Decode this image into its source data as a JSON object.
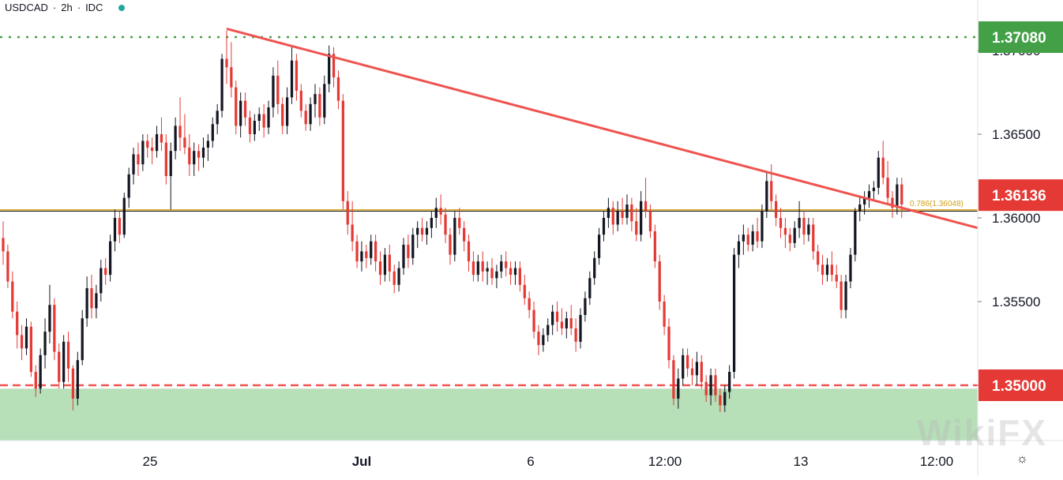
{
  "header": {
    "symbol": "USDCAD",
    "separator": "·",
    "interval": "2h",
    "source": "IDC",
    "status_color": "#26a69a"
  },
  "watermark_text": "WikiFX",
  "settings_icon": "gear-icon",
  "colors": {
    "up": "#131722",
    "down": "#e53935",
    "trendline": "#ef5350",
    "resistance": "#43a047",
    "support": "#ef5350",
    "support_zone": "#b7e0b9",
    "fib": "#d4a017",
    "price_line": "#131722"
  },
  "chart_data": {
    "type": "candlestick",
    "symbol": "USDCAD",
    "interval": "2h",
    "source": "IDC",
    "y_axis": {
      "ticks": [
        "1.35000",
        "1.35500",
        "1.36000",
        "1.36500",
        "1.37000"
      ],
      "range": [
        1.3461,
        1.3775
      ]
    },
    "x_axis": {
      "ticks": [
        "25",
        "Jul",
        "6",
        "12:00",
        "13",
        "12:00"
      ]
    },
    "price_labels": [
      {
        "value": "1.37080",
        "color": "#43a047"
      },
      {
        "value": "1.36136",
        "color": "#e53935"
      },
      {
        "value": "1.35000",
        "color": "#e53935"
      }
    ],
    "horizontal_lines": [
      {
        "value": 1.3708,
        "style": "dotted",
        "color": "#43a047"
      },
      {
        "value": 1.35,
        "style": "dashed",
        "color": "#ef5350"
      },
      {
        "value": 1.36048,
        "style": "solid",
        "color": "#d4a017",
        "label": "0.786(1.36048)"
      }
    ],
    "support_zone": [
      1.3461,
      1.3498
    ],
    "trendline": {
      "from": {
        "bar": 48,
        "price": 1.3713
      },
      "to": {
        "bar": 210,
        "price": 1.3594
      }
    },
    "bars_visible": 210,
    "candles": [
      [
        1.3588,
        1.3598,
        1.3572,
        1.358
      ],
      [
        1.358,
        1.3584,
        1.3558,
        1.3562
      ],
      [
        1.3562,
        1.3568,
        1.354,
        1.3544
      ],
      [
        1.3544,
        1.355,
        1.3522,
        1.353
      ],
      [
        1.353,
        1.3536,
        1.3515,
        1.3522
      ],
      [
        1.3522,
        1.354,
        1.3518,
        1.3535
      ],
      [
        1.3535,
        1.3538,
        1.3505,
        1.3508
      ],
      [
        1.3508,
        1.3512,
        1.3493,
        1.3498
      ],
      [
        1.3498,
        1.3522,
        1.3495,
        1.3518
      ],
      [
        1.3518,
        1.354,
        1.351,
        1.3532
      ],
      [
        1.3532,
        1.356,
        1.3525,
        1.3548
      ],
      [
        1.3548,
        1.3552,
        1.3515,
        1.352
      ],
      [
        1.352,
        1.3525,
        1.3498,
        1.3502
      ],
      [
        1.3502,
        1.353,
        1.3498,
        1.3526
      ],
      [
        1.3526,
        1.3532,
        1.3502,
        1.351
      ],
      [
        1.351,
        1.3512,
        1.3485,
        1.3492
      ],
      [
        1.3492,
        1.352,
        1.3488,
        1.3515
      ],
      [
        1.3515,
        1.3545,
        1.3512,
        1.354
      ],
      [
        1.354,
        1.3565,
        1.3535,
        1.3558
      ],
      [
        1.3558,
        1.3566,
        1.354,
        1.3546
      ],
      [
        1.3546,
        1.356,
        1.354,
        1.3555
      ],
      [
        1.3555,
        1.3575,
        1.355,
        1.357
      ],
      [
        1.357,
        1.3576,
        1.356,
        1.3566
      ],
      [
        1.3566,
        1.359,
        1.3562,
        1.3586
      ],
      [
        1.3586,
        1.3605,
        1.358,
        1.36
      ],
      [
        1.36,
        1.3604,
        1.3585,
        1.359
      ],
      [
        1.359,
        1.3615,
        1.3588,
        1.3612
      ],
      [
        1.3612,
        1.363,
        1.3606,
        1.3626
      ],
      [
        1.3626,
        1.3642,
        1.362,
        1.3638
      ],
      [
        1.3638,
        1.3645,
        1.3625,
        1.3632
      ],
      [
        1.3632,
        1.365,
        1.3628,
        1.3646
      ],
      [
        1.3646,
        1.365,
        1.3636,
        1.3642
      ],
      [
        1.3642,
        1.3648,
        1.3632,
        1.364
      ],
      [
        1.364,
        1.3655,
        1.3636,
        1.365
      ],
      [
        1.365,
        1.366,
        1.364,
        1.3645
      ],
      [
        1.3645,
        1.365,
        1.362,
        1.3625
      ],
      [
        1.3625,
        1.3645,
        1.3605,
        1.364
      ],
      [
        1.364,
        1.366,
        1.3635,
        1.3655
      ],
      [
        1.3655,
        1.3672,
        1.364,
        1.3648
      ],
      [
        1.3648,
        1.3662,
        1.3638,
        1.3642
      ],
      [
        1.3642,
        1.365,
        1.3625,
        1.3632
      ],
      [
        1.3632,
        1.3645,
        1.3625,
        1.364
      ],
      [
        1.364,
        1.3644,
        1.3628,
        1.3636
      ],
      [
        1.3636,
        1.3648,
        1.363,
        1.3642
      ],
      [
        1.3642,
        1.365,
        1.3634,
        1.3646
      ],
      [
        1.3646,
        1.366,
        1.3642,
        1.3656
      ],
      [
        1.3656,
        1.3668,
        1.365,
        1.3664
      ],
      [
        1.3664,
        1.3698,
        1.366,
        1.3695
      ],
      [
        1.3695,
        1.3712,
        1.368,
        1.369
      ],
      [
        1.369,
        1.3705,
        1.3672,
        1.3678
      ],
      [
        1.3678,
        1.3682,
        1.365,
        1.3655
      ],
      [
        1.3655,
        1.3675,
        1.3648,
        1.367
      ],
      [
        1.367,
        1.3675,
        1.3655,
        1.366
      ],
      [
        1.366,
        1.3664,
        1.3645,
        1.365
      ],
      [
        1.365,
        1.3662,
        1.3646,
        1.3658
      ],
      [
        1.3658,
        1.3666,
        1.3652,
        1.3662
      ],
      [
        1.3662,
        1.3668,
        1.3648,
        1.3654
      ],
      [
        1.3654,
        1.367,
        1.365,
        1.3666
      ],
      [
        1.3666,
        1.369,
        1.366,
        1.3685
      ],
      [
        1.3685,
        1.3694,
        1.3662,
        1.3668
      ],
      [
        1.3668,
        1.3672,
        1.365,
        1.3655
      ],
      [
        1.3655,
        1.3678,
        1.365,
        1.3672
      ],
      [
        1.3672,
        1.3702,
        1.3668,
        1.3694
      ],
      [
        1.3694,
        1.3698,
        1.367,
        1.3676
      ],
      [
        1.3676,
        1.368,
        1.366,
        1.3664
      ],
      [
        1.3664,
        1.3668,
        1.3652,
        1.3656
      ],
      [
        1.3656,
        1.3672,
        1.3652,
        1.3668
      ],
      [
        1.3668,
        1.368,
        1.366,
        1.3674
      ],
      [
        1.3674,
        1.3678,
        1.3655,
        1.366
      ],
      [
        1.366,
        1.3685,
        1.3656,
        1.368
      ],
      [
        1.368,
        1.3703,
        1.3675,
        1.3698
      ],
      [
        1.3698,
        1.3702,
        1.3678,
        1.3684
      ],
      [
        1.3684,
        1.3688,
        1.3665,
        1.367
      ],
      [
        1.367,
        1.3674,
        1.3605,
        1.361
      ],
      [
        1.361,
        1.3616,
        1.359,
        1.3596
      ],
      [
        1.3596,
        1.361,
        1.358,
        1.3586
      ],
      [
        1.3586,
        1.359,
        1.357,
        1.3574
      ],
      [
        1.3574,
        1.3586,
        1.3568,
        1.358
      ],
      [
        1.358,
        1.3584,
        1.357,
        1.3576
      ],
      [
        1.3576,
        1.359,
        1.3572,
        1.3586
      ],
      [
        1.3586,
        1.359,
        1.3568,
        1.3574
      ],
      [
        1.3574,
        1.358,
        1.356,
        1.3566
      ],
      [
        1.3566,
        1.3582,
        1.3562,
        1.3578
      ],
      [
        1.3578,
        1.3584,
        1.3562,
        1.3568
      ],
      [
        1.3568,
        1.3572,
        1.3555,
        1.356
      ],
      [
        1.356,
        1.3574,
        1.3556,
        1.357
      ],
      [
        1.357,
        1.3588,
        1.3566,
        1.3584
      ],
      [
        1.3584,
        1.359,
        1.357,
        1.3576
      ],
      [
        1.3576,
        1.3594,
        1.3572,
        1.359
      ],
      [
        1.359,
        1.3598,
        1.3582,
        1.3594
      ],
      [
        1.3594,
        1.36,
        1.3586,
        1.359
      ],
      [
        1.359,
        1.3598,
        1.3584,
        1.3594
      ],
      [
        1.3594,
        1.3604,
        1.3588,
        1.36
      ],
      [
        1.36,
        1.3612,
        1.3594,
        1.3606
      ],
      [
        1.3606,
        1.3614,
        1.3596,
        1.3602
      ],
      [
        1.3602,
        1.3606,
        1.3585,
        1.359
      ],
      [
        1.359,
        1.3594,
        1.3572,
        1.3578
      ],
      [
        1.3578,
        1.3604,
        1.3574,
        1.36
      ],
      [
        1.36,
        1.3606,
        1.359,
        1.3594
      ],
      [
        1.3594,
        1.3598,
        1.358,
        1.3586
      ],
      [
        1.3586,
        1.359,
        1.3568,
        1.3574
      ],
      [
        1.3574,
        1.358,
        1.3562,
        1.3566
      ],
      [
        1.3566,
        1.3578,
        1.3562,
        1.3574
      ],
      [
        1.3574,
        1.358,
        1.3562,
        1.3568
      ],
      [
        1.3568,
        1.3574,
        1.356,
        1.357
      ],
      [
        1.357,
        1.3576,
        1.356,
        1.3564
      ],
      [
        1.3564,
        1.3572,
        1.3558,
        1.3568
      ],
      [
        1.3568,
        1.3578,
        1.3564,
        1.3574
      ],
      [
        1.3574,
        1.358,
        1.3565,
        1.357
      ],
      [
        1.357,
        1.3574,
        1.356,
        1.3566
      ],
      [
        1.3566,
        1.3574,
        1.356,
        1.357
      ],
      [
        1.357,
        1.3574,
        1.3556,
        1.356
      ],
      [
        1.356,
        1.3566,
        1.3548,
        1.3552
      ],
      [
        1.3552,
        1.3556,
        1.354,
        1.3545
      ],
      [
        1.3545,
        1.355,
        1.3528,
        1.3532
      ],
      [
        1.3532,
        1.3536,
        1.3518,
        1.3524
      ],
      [
        1.3524,
        1.3534,
        1.352,
        1.353
      ],
      [
        1.353,
        1.354,
        1.3526,
        1.3536
      ],
      [
        1.3536,
        1.3548,
        1.353,
        1.3544
      ],
      [
        1.3544,
        1.355,
        1.3532,
        1.3538
      ],
      [
        1.3538,
        1.3546,
        1.353,
        1.3534
      ],
      [
        1.3534,
        1.3544,
        1.3528,
        1.354
      ],
      [
        1.354,
        1.3548,
        1.353,
        1.3534
      ],
      [
        1.3534,
        1.354,
        1.352,
        1.3526
      ],
      [
        1.3526,
        1.3546,
        1.3522,
        1.3542
      ],
      [
        1.3542,
        1.3556,
        1.3538,
        1.3552
      ],
      [
        1.3552,
        1.3568,
        1.3548,
        1.3564
      ],
      [
        1.3564,
        1.358,
        1.356,
        1.3576
      ],
      [
        1.3576,
        1.3594,
        1.3572,
        1.359
      ],
      [
        1.359,
        1.3604,
        1.3586,
        1.36
      ],
      [
        1.36,
        1.3612,
        1.3594,
        1.3606
      ],
      [
        1.3606,
        1.361,
        1.359,
        1.3596
      ],
      [
        1.3596,
        1.361,
        1.3592,
        1.3604
      ],
      [
        1.3604,
        1.3612,
        1.3596,
        1.36
      ],
      [
        1.36,
        1.3614,
        1.3596,
        1.3608
      ],
      [
        1.3608,
        1.3612,
        1.3592,
        1.3598
      ],
      [
        1.3598,
        1.3606,
        1.3586,
        1.359
      ],
      [
        1.359,
        1.3616,
        1.3586,
        1.361
      ],
      [
        1.361,
        1.3624,
        1.36,
        1.3604
      ],
      [
        1.3604,
        1.3608,
        1.3588,
        1.3592
      ],
      [
        1.3592,
        1.3596,
        1.357,
        1.3574
      ],
      [
        1.3574,
        1.3578,
        1.3545,
        1.355
      ],
      [
        1.355,
        1.3554,
        1.353,
        1.3535
      ],
      [
        1.3535,
        1.354,
        1.351,
        1.3515
      ],
      [
        1.3515,
        1.3518,
        1.3488,
        1.3492
      ],
      [
        1.3492,
        1.351,
        1.3486,
        1.3504
      ],
      [
        1.3504,
        1.3522,
        1.35,
        1.3518
      ],
      [
        1.3518,
        1.3522,
        1.3505,
        1.351
      ],
      [
        1.351,
        1.3516,
        1.35,
        1.3506
      ],
      [
        1.3506,
        1.352,
        1.35,
        1.3514
      ],
      [
        1.3514,
        1.3518,
        1.3498,
        1.3502
      ],
      [
        1.3502,
        1.3506,
        1.349,
        1.3494
      ],
      [
        1.3494,
        1.351,
        1.3488,
        1.3506
      ],
      [
        1.3506,
        1.351,
        1.349,
        1.3494
      ],
      [
        1.3494,
        1.3498,
        1.3484,
        1.3488
      ],
      [
        1.3488,
        1.35,
        1.3484,
        1.3496
      ],
      [
        1.3496,
        1.3512,
        1.3492,
        1.3508
      ],
      [
        1.3508,
        1.3582,
        1.3504,
        1.3578
      ],
      [
        1.3578,
        1.359,
        1.357,
        1.3586
      ],
      [
        1.3586,
        1.3596,
        1.3578,
        1.359
      ],
      [
        1.359,
        1.3594,
        1.358,
        1.3584
      ],
      [
        1.3584,
        1.3596,
        1.358,
        1.3592
      ],
      [
        1.3592,
        1.36,
        1.3582,
        1.3586
      ],
      [
        1.3586,
        1.3608,
        1.3582,
        1.3604
      ],
      [
        1.3604,
        1.3628,
        1.36,
        1.3622
      ],
      [
        1.3622,
        1.3632,
        1.3605,
        1.361
      ],
      [
        1.361,
        1.3614,
        1.3595,
        1.36
      ],
      [
        1.36,
        1.3606,
        1.3588,
        1.3594
      ],
      [
        1.3594,
        1.36,
        1.3582,
        1.359
      ],
      [
        1.359,
        1.3594,
        1.358,
        1.3585
      ],
      [
        1.3585,
        1.3598,
        1.3582,
        1.3594
      ],
      [
        1.3594,
        1.361,
        1.3588,
        1.36
      ],
      [
        1.36,
        1.3604,
        1.3584,
        1.359
      ],
      [
        1.359,
        1.36,
        1.3586,
        1.3596
      ],
      [
        1.3596,
        1.36,
        1.3575,
        1.358
      ],
      [
        1.358,
        1.3584,
        1.3568,
        1.3572
      ],
      [
        1.3572,
        1.3578,
        1.356,
        1.3566
      ],
      [
        1.3566,
        1.3576,
        1.3562,
        1.3572
      ],
      [
        1.3572,
        1.358,
        1.3562,
        1.3566
      ],
      [
        1.3566,
        1.3572,
        1.3558,
        1.3562
      ],
      [
        1.3562,
        1.3566,
        1.354,
        1.3545
      ],
      [
        1.3545,
        1.3566,
        1.354,
        1.3562
      ],
      [
        1.3562,
        1.3582,
        1.3558,
        1.3578
      ],
      [
        1.3578,
        1.3606,
        1.3574,
        1.3604
      ],
      [
        1.3604,
        1.3612,
        1.3598,
        1.3608
      ],
      [
        1.3608,
        1.3616,
        1.3602,
        1.3612
      ],
      [
        1.3612,
        1.362,
        1.3606,
        1.3616
      ],
      [
        1.3616,
        1.3622,
        1.361,
        1.3618
      ],
      [
        1.3618,
        1.364,
        1.3614,
        1.3636
      ],
      [
        1.3636,
        1.3646,
        1.362,
        1.3624
      ],
      [
        1.3624,
        1.3634,
        1.3608,
        1.3612
      ],
      [
        1.3612,
        1.3616,
        1.36,
        1.3606
      ],
      [
        1.3606,
        1.3624,
        1.3602,
        1.362
      ],
      [
        1.362,
        1.3624,
        1.36,
        1.3608
      ]
    ]
  }
}
